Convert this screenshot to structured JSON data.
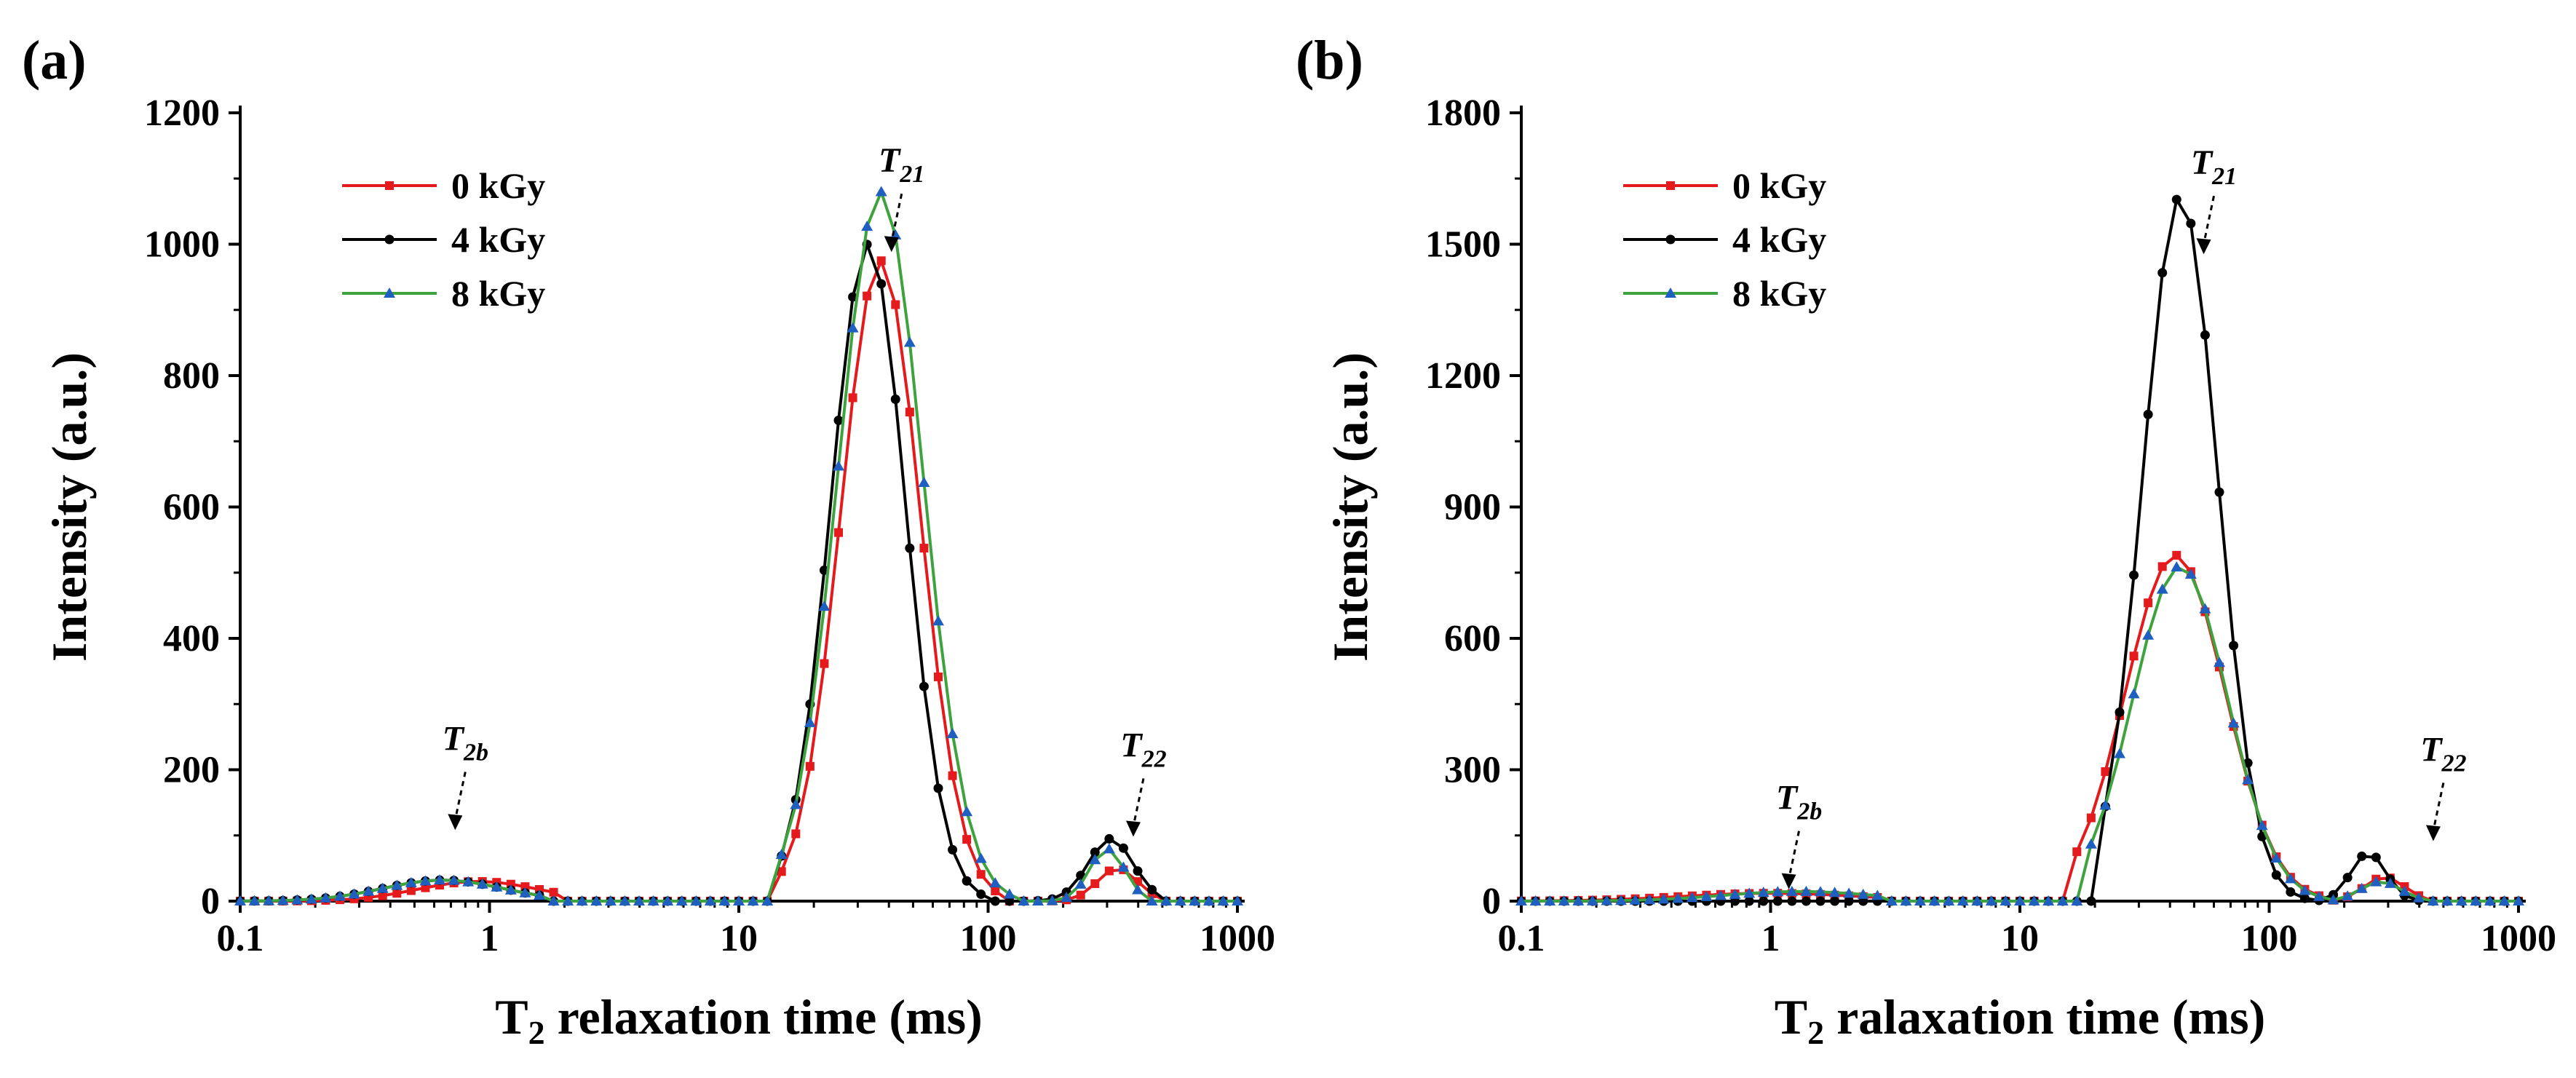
{
  "chart_data": [
    {
      "panel_label": "(a)",
      "type": "line",
      "x_scale": "log",
      "xlabel": "T",
      "xlabel_sub": "2",
      "xlabel_rest": " relaxation time (ms)",
      "ylabel": "Intensity (a.u.)",
      "xlim": [
        0.1,
        1000
      ],
      "ylim": [
        0,
        1200
      ],
      "x_ticks": [
        0.1,
        1,
        10,
        100,
        1000
      ],
      "x_tick_labels": [
        "0.1",
        "1",
        "10",
        "100",
        "1000"
      ],
      "y_ticks": [
        0,
        200,
        400,
        600,
        800,
        1000,
        1200
      ],
      "y_tick_labels": [
        "0",
        "200",
        "400",
        "600",
        "800",
        "1000",
        "1200"
      ],
      "legend": [
        "0 kGy",
        "4 kGy",
        "8 kGy"
      ],
      "legend_position": "top-left",
      "series": [
        {
          "name": "0 kGy",
          "color": "#e41a1c",
          "marker": "square",
          "peaks": [
            {
              "center": 0.9,
              "width": 0.24,
              "amp": 30
            },
            {
              "center": 37,
              "width": 0.16,
              "amp": 975
            },
            {
              "center": 330,
              "width": 0.08,
              "amp": 50
            }
          ],
          "domain": [
            [
              0.1,
              2.0
            ],
            [
              14,
              110
            ],
            [
              160,
              460
            ]
          ]
        },
        {
          "name": "4 kGy",
          "color": "#000000",
          "marker": "circle",
          "peaks": [
            {
              "center": 0.65,
              "width": 0.24,
              "amp": 32
            },
            {
              "center": 33,
              "width": 0.15,
              "amp": 1000
            },
            {
              "center": 310,
              "width": 0.09,
              "amp": 95
            }
          ],
          "domain": [
            [
              0.1,
              1.6
            ],
            [
              14,
              95
            ],
            [
              150,
              470
            ]
          ]
        },
        {
          "name": "8 kGy",
          "color": "#3ea33e",
          "marker": "triangle",
          "marker_color": "#1f5fbf",
          "peaks": [
            {
              "center": 0.65,
              "width": 0.24,
              "amp": 32
            },
            {
              "center": 37,
              "width": 0.17,
              "amp": 1080
            },
            {
              "center": 300,
              "width": 0.07,
              "amp": 80
            }
          ],
          "domain": [
            [
              0.1,
              1.6
            ],
            [
              14,
              125
            ],
            [
              140,
              420
            ]
          ]
        }
      ],
      "annotations": [
        {
          "text": "T",
          "sub": "21",
          "x": 45,
          "y": 1110
        },
        {
          "text": "T",
          "sub": "2b",
          "x": 0.8,
          "y": 230
        },
        {
          "text": "T",
          "sub": "22",
          "x": 420,
          "y": 220
        }
      ]
    },
    {
      "panel_label": "(b)",
      "type": "line",
      "x_scale": "log",
      "xlabel": "T",
      "xlabel_sub": "2",
      "xlabel_rest": " ralaxation time (ms)",
      "ylabel": "Intensity (a.u.)",
      "xlim": [
        0.1,
        1000
      ],
      "ylim": [
        0,
        1800
      ],
      "x_ticks": [
        0.1,
        1,
        10,
        100,
        1000
      ],
      "x_tick_labels": [
        "0.1",
        "1",
        "10",
        "100",
        "1000"
      ],
      "y_ticks": [
        0,
        300,
        600,
        900,
        1200,
        1500,
        1800
      ],
      "y_tick_labels": [
        "0",
        "300",
        "600",
        "900",
        "1200",
        "1500",
        "1800"
      ],
      "legend": [
        "0 kGy",
        "4 kGy",
        "8 kGy"
      ],
      "legend_position": "top-left",
      "series": [
        {
          "name": "0 kGy",
          "color": "#e41a1c",
          "marker": "square",
          "peaks": [
            {
              "center": 1.0,
              "width": 0.35,
              "amp": 18
            },
            {
              "center": 42,
              "width": 0.2,
              "amp": 790
            },
            {
              "center": 290,
              "width": 0.08,
              "amp": 55
            }
          ],
          "domain": [
            [
              0.1,
              3.0
            ],
            [
              15,
              180
            ],
            [
              180,
              430
            ]
          ]
        },
        {
          "name": "4 kGy",
          "color": "#000000",
          "marker": "circle",
          "peaks": [
            {
              "center": 0.1,
              "width": 0.5,
              "amp": 0
            },
            {
              "center": 44,
              "width": 0.15,
              "amp": 1610
            },
            {
              "center": 250,
              "width": 0.07,
              "amp": 110
            }
          ],
          "domain": [
            [
              0.1,
              20
            ],
            [
              22,
              170
            ],
            [
              180,
              400
            ]
          ]
        },
        {
          "name": "8 kGy",
          "color": "#3ea33e",
          "marker": "triangle",
          "marker_color": "#1f5fbf",
          "peaks": [
            {
              "center": 1.3,
              "width": 0.3,
              "amp": 22
            },
            {
              "center": 44,
              "width": 0.19,
              "amp": 765
            },
            {
              "center": 280,
              "width": 0.08,
              "amp": 45
            }
          ],
          "domain": [
            [
              0.1,
              3.0
            ],
            [
              18,
              180
            ],
            [
              180,
              420
            ]
          ]
        }
      ],
      "annotations": [
        {
          "text": "T",
          "sub": "21",
          "x": 60,
          "y": 1660
        },
        {
          "text": "T",
          "sub": "2b",
          "x": 1.3,
          "y": 210
        },
        {
          "text": "T",
          "sub": "22",
          "x": 500,
          "y": 320
        }
      ]
    }
  ]
}
